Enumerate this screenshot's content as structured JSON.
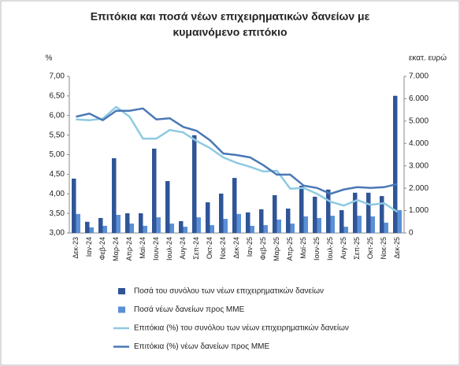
{
  "chart_data": {
    "type": "combo",
    "title": [
      "Επιτόκια και ποσά νέων επιχειρηματικών δανείων με",
      "κυμαινόμενο επιτόκιο"
    ],
    "y_label": "%",
    "y2_label": "εκατ. ευρώ",
    "categories": [
      "Δεκ-23",
      "Ιαν-24",
      "Φεβ-24",
      "Μαρ-24",
      "Απρ-24",
      "Μαϊ-24",
      "Ιουν-24",
      "Ιουλ-24",
      "Αυγ-24",
      "Σεπ-24",
      "Οκτ-24",
      "Νοε-24",
      "Δεκ-24",
      "Ιαν-25",
      "Φεβ-25",
      "Μαρ-25",
      "Απρ-25",
      "Μαϊ-25",
      "Ιουν-25",
      "Ιουλ-25",
      "Αυγ-25",
      "Σεπ-25",
      "Οκτ-25",
      "Νοε-25",
      "Δεκ-25"
    ],
    "ylim": [
      3,
      7
    ],
    "yticks": [
      {
        "value": 3,
        "label": "3,00"
      },
      {
        "value": 3.5,
        "label": "3,50"
      },
      {
        "value": 4,
        "label": "4,00"
      },
      {
        "value": 4.5,
        "label": "4,50"
      },
      {
        "value": 5,
        "label": "5,00"
      },
      {
        "value": 5.5,
        "label": "5,50"
      },
      {
        "value": 6,
        "label": "6,00"
      },
      {
        "value": 6.5,
        "label": "6,50"
      },
      {
        "value": 7,
        "label": "7,00"
      }
    ],
    "y2lim": [
      0,
      7000
    ],
    "y2ticks": [
      0,
      {
        "value": 1000,
        "label": "1.000"
      },
      {
        "value": 2000,
        "label": "2.000"
      },
      {
        "value": 3000,
        "label": "3.000"
      },
      {
        "value": 4000,
        "label": "4.000"
      },
      {
        "value": 5000,
        "label": "5.000"
      },
      {
        "value": 6000,
        "label": "6.000"
      },
      {
        "value": 7000,
        "label": "7.000"
      }
    ],
    "grid": false,
    "series": [
      {
        "name": "Ποσά του συνόλου των νέων επιχειρηματικών δανείων",
        "type": "bar",
        "axis": "y2",
        "color": "#2f5597",
        "values": [
          2430,
          500,
          670,
          3340,
          880,
          880,
          3770,
          2320,
          530,
          4370,
          1370,
          1760,
          2460,
          920,
          1060,
          1690,
          1090,
          2110,
          1620,
          1940,
          1020,
          1800,
          1800,
          1650,
          6130
        ]
      },
      {
        "name": "Ποσά νέων δανείων προς ΜΜΕ",
        "type": "bar",
        "axis": "y2",
        "color": "#5b8fd6",
        "values": [
          850,
          250,
          320,
          810,
          420,
          320,
          700,
          420,
          280,
          700,
          350,
          630,
          850,
          320,
          350,
          600,
          420,
          740,
          670,
          770,
          280,
          770,
          740,
          460,
          1020
        ]
      },
      {
        "name": "Επιτόκια (%) του συνόλου των νέων επιχειρηματικών δανείων",
        "type": "line",
        "color": "#8ecae2",
        "values": [
          5.9,
          5.88,
          5.92,
          6.22,
          5.97,
          5.41,
          5.41,
          5.63,
          5.57,
          5.35,
          5.17,
          4.93,
          4.79,
          4.69,
          4.57,
          4.59,
          4.13,
          4.15,
          4.0,
          3.8,
          3.7,
          3.84,
          3.72,
          3.76,
          3.54
        ]
      },
      {
        "name": "Επιτόκια (%) νέων δανείων προς ΜΜΕ",
        "type": "line",
        "color": "#4a78b5",
        "values": [
          5.97,
          6.05,
          5.88,
          6.12,
          6.12,
          6.18,
          5.9,
          5.93,
          5.71,
          5.61,
          5.37,
          5.03,
          4.99,
          4.93,
          4.73,
          4.49,
          4.49,
          4.21,
          4.15,
          4.0,
          4.11,
          4.17,
          4.15,
          4.17,
          4.25
        ]
      }
    ]
  }
}
